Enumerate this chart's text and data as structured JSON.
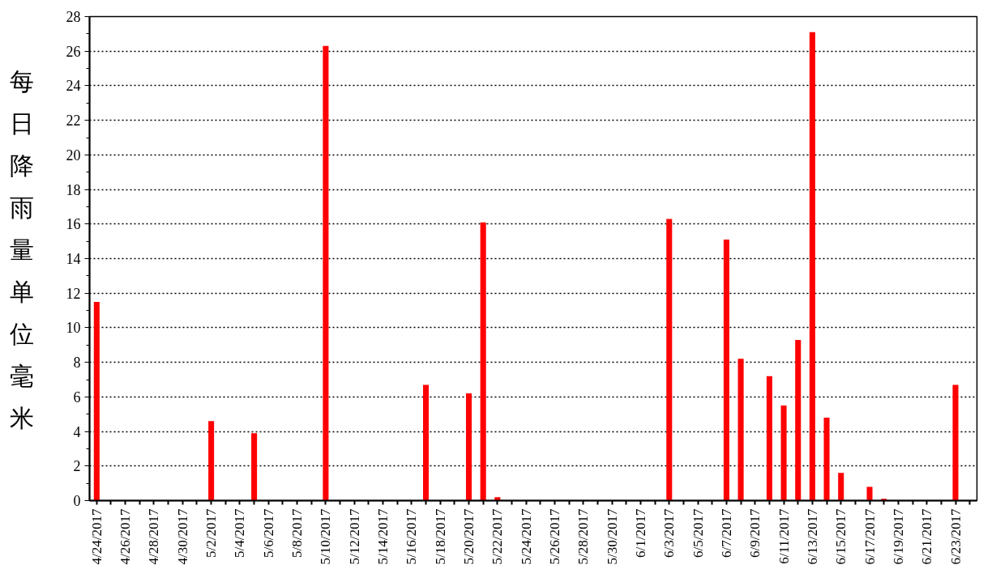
{
  "chart_data": {
    "type": "bar",
    "ylabel": "每日降雨量单位毫米",
    "categories": [
      "4/24/2017",
      null,
      "4/26/2017",
      null,
      "4/28/2017",
      null,
      "4/30/2017",
      null,
      "5/2/2017",
      null,
      "5/4/2017",
      null,
      "5/6/2017",
      null,
      "5/8/2017",
      null,
      "5/10/2017",
      null,
      "5/12/2017",
      null,
      "5/14/2017",
      null,
      "5/16/2017",
      null,
      "5/18/2017",
      null,
      "5/20/2017",
      null,
      "5/22/2017",
      null,
      "5/24/2017",
      null,
      "5/26/2017",
      null,
      "5/28/2017",
      null,
      "5/30/2017",
      null,
      "6/1/2017",
      null,
      "6/3/2017",
      null,
      "6/5/2017",
      null,
      "6/7/2017",
      null,
      "6/9/2017",
      null,
      "6/11/2017",
      null,
      "6/13/2017",
      null,
      "6/15/2017",
      null,
      "6/17/2017",
      null,
      "6/19/2017",
      null,
      "6/21/2017",
      null,
      "6/23/2017",
      null
    ],
    "values": [
      11.5,
      0,
      0,
      0,
      0,
      0,
      0,
      0,
      4.6,
      0,
      0,
      3.9,
      0,
      0,
      0,
      0,
      26.3,
      0,
      0,
      0,
      0,
      0,
      0,
      6.7,
      0,
      0,
      6.2,
      16.1,
      0.2,
      0,
      0,
      0,
      0,
      0,
      0,
      0,
      0,
      0,
      0,
      0,
      16.3,
      0,
      0,
      0,
      15.1,
      8.2,
      0,
      7.2,
      5.5,
      9.3,
      27.1,
      4.8,
      1.6,
      0,
      0.8,
      0.1,
      0,
      0,
      0,
      0,
      6.7,
      0
    ],
    "color": "#ff0000",
    "ylim": [
      0,
      28
    ],
    "yticks": [
      0,
      2,
      4,
      6,
      8,
      10,
      12,
      14,
      16,
      18,
      20,
      22,
      24,
      26,
      28
    ],
    "grid": "y"
  }
}
